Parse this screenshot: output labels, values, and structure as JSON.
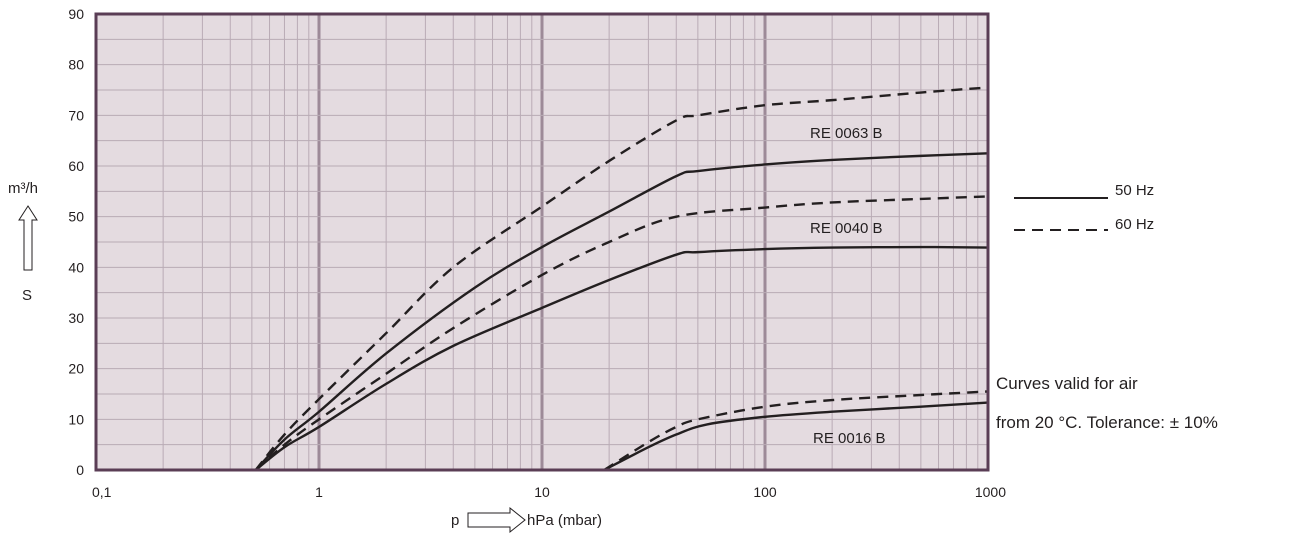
{
  "chart_data": {
    "type": "line",
    "x_scale": "log",
    "xlim": [
      0.1,
      1000
    ],
    "ylim": [
      0,
      90
    ],
    "grid": true,
    "x_ticks": [
      "0,1",
      "1",
      "10",
      "100",
      "1000"
    ],
    "y_ticks": [
      "0",
      "10",
      "20",
      "30",
      "40",
      "50",
      "60",
      "70",
      "80",
      "90"
    ],
    "xlabel_left": "p",
    "xlabel_right": "hPa (mbar)",
    "ylabel_top": "m³/h",
    "ylabel_bottom": "S",
    "colors": {
      "plot_bg": "#e4dbe0",
      "frame": "#5a3d55",
      "grid_major": "#9d8a98",
      "grid_minor": "#b9abb5",
      "line": "#231f20"
    },
    "legend": {
      "placement": "right",
      "entries": [
        {
          "label": "50 Hz",
          "style": "solid"
        },
        {
          "label": "60 Hz",
          "style": "dashed"
        }
      ]
    },
    "annotations": {
      "note_line1": "Curves valid for air",
      "note_line2": "from 20 °C. Tolerance: ± 10%"
    },
    "series": [
      {
        "name": "RE 0063 B",
        "frequency": "60 Hz",
        "style": "dashed",
        "points": [
          [
            0.52,
            0
          ],
          [
            0.7,
            7
          ],
          [
            1,
            14
          ],
          [
            2,
            27
          ],
          [
            4,
            40
          ],
          [
            10,
            52
          ],
          [
            20,
            61
          ],
          [
            40,
            69
          ],
          [
            50,
            70
          ],
          [
            100,
            72
          ],
          [
            200,
            73
          ],
          [
            500,
            74.5
          ],
          [
            1000,
            75.5
          ]
        ]
      },
      {
        "name": "RE 0063 B",
        "frequency": "50 Hz",
        "style": "solid",
        "points": [
          [
            0.52,
            0
          ],
          [
            0.7,
            6
          ],
          [
            1,
            11.5
          ],
          [
            2,
            23
          ],
          [
            5,
            36
          ],
          [
            10,
            44
          ],
          [
            20,
            51
          ],
          [
            40,
            58
          ],
          [
            50,
            59
          ],
          [
            100,
            60.3
          ],
          [
            200,
            61.2
          ],
          [
            500,
            62
          ],
          [
            1000,
            62.5
          ]
        ]
      },
      {
        "name": "RE 0040 B",
        "frequency": "60 Hz",
        "style": "dashed",
        "points": [
          [
            0.52,
            0
          ],
          [
            0.7,
            5
          ],
          [
            1,
            10
          ],
          [
            2,
            19
          ],
          [
            4,
            28
          ],
          [
            10,
            38.5
          ],
          [
            20,
            45
          ],
          [
            40,
            50
          ],
          [
            100,
            51.8
          ],
          [
            200,
            52.8
          ],
          [
            500,
            53.5
          ],
          [
            1000,
            54
          ]
        ]
      },
      {
        "name": "RE 0040 B",
        "frequency": "50 Hz",
        "style": "solid",
        "points": [
          [
            0.52,
            0
          ],
          [
            0.7,
            4.5
          ],
          [
            1,
            8.5
          ],
          [
            2,
            17
          ],
          [
            4,
            24.5
          ],
          [
            10,
            32
          ],
          [
            20,
            37.5
          ],
          [
            40,
            42.5
          ],
          [
            50,
            43
          ],
          [
            100,
            43.6
          ],
          [
            200,
            43.9
          ],
          [
            500,
            44
          ],
          [
            1000,
            43.9
          ]
        ]
      },
      {
        "name": "RE 0016 B",
        "frequency": "60 Hz",
        "style": "dashed",
        "points": [
          [
            19,
            0
          ],
          [
            30,
            5.5
          ],
          [
            40,
            8.5
          ],
          [
            50,
            10
          ],
          [
            100,
            12.5
          ],
          [
            200,
            13.8
          ],
          [
            500,
            14.8
          ],
          [
            1000,
            15.5
          ]
        ]
      },
      {
        "name": "RE 0016 B",
        "frequency": "50 Hz",
        "style": "solid",
        "points": [
          [
            19,
            0
          ],
          [
            30,
            4.5
          ],
          [
            40,
            7
          ],
          [
            55,
            9
          ],
          [
            100,
            10.5
          ],
          [
            200,
            11.5
          ],
          [
            500,
            12.5
          ],
          [
            1000,
            13.3
          ]
        ]
      }
    ],
    "curve_labels": [
      "RE 0063 B",
      "RE 0040 B",
      "RE 0016 B"
    ]
  }
}
